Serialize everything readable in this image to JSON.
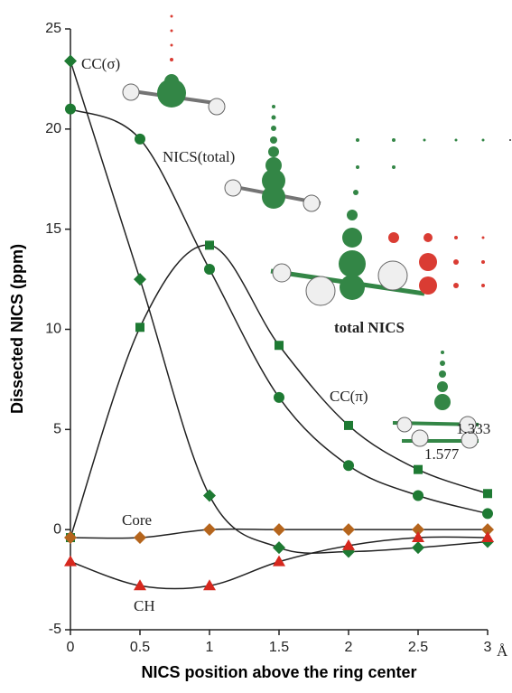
{
  "chart_data": {
    "type": "line",
    "x_label": "NICS position above the ring center",
    "y_label": "Dissected NICS (ppm)",
    "x": [
      0,
      0.5,
      1,
      1.5,
      2,
      2.5,
      3
    ],
    "xlim": [
      0,
      3
    ],
    "xticks": [
      0,
      0.5,
      1,
      1.5,
      2,
      2.5,
      3
    ],
    "ylim": [
      -5,
      25
    ],
    "yticks": [
      -5,
      0,
      5,
      10,
      15,
      20,
      25
    ],
    "line_color": "#222222",
    "series": [
      {
        "name": "CC(σ)",
        "color": "#1e7a33",
        "marker": "diamond",
        "values": [
          23.4,
          12.5,
          1.7,
          -0.9,
          -1.1,
          -0.9,
          -0.6
        ]
      },
      {
        "name": "NICS(total)",
        "color": "#1e7a33",
        "marker": "circle",
        "values": [
          21.0,
          19.5,
          13.0,
          6.6,
          3.2,
          1.7,
          0.8
        ]
      },
      {
        "name": "CC(π)",
        "color": "#1e7a33",
        "marker": "square",
        "values": [
          -0.4,
          10.1,
          14.2,
          9.2,
          5.2,
          3.0,
          1.8
        ]
      },
      {
        "name": "Core",
        "color": "#b5651d",
        "marker": "diamond",
        "values": [
          -0.4,
          -0.4,
          0,
          0,
          0,
          0,
          0
        ]
      },
      {
        "name": "CH",
        "color": "#d6281e",
        "marker": "triangle",
        "values": [
          -1.6,
          -2.8,
          -2.8,
          -1.6,
          -0.8,
          -0.4,
          -0.4
        ]
      }
    ],
    "annotations": [
      "total NICS",
      "1.333",
      "1.577",
      "Å"
    ]
  }
}
